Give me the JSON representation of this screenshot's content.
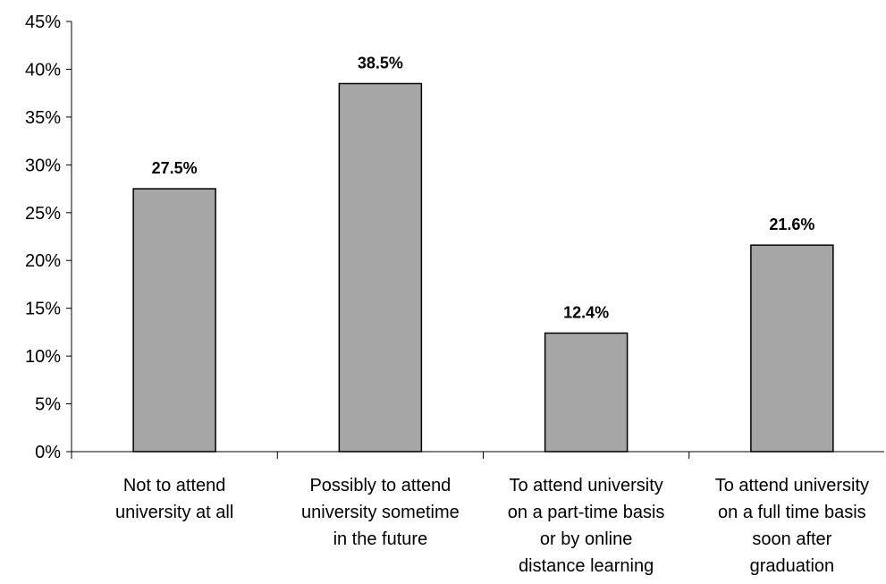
{
  "chart_data": {
    "type": "bar",
    "categories": [
      "Not to attend university at all",
      "Possibly to attend university sometime in the future",
      "To attend university on a part-time basis or by online distance learning",
      "To attend university on a full time basis soon after graduation"
    ],
    "category_label_lines": [
      [
        "Not to attend",
        "university at all"
      ],
      [
        "Possibly to attend",
        "university sometime",
        "in the future"
      ],
      [
        "To attend university",
        "on a part-time basis",
        "or by online",
        "distance learning"
      ],
      [
        "To attend university",
        "on a full time basis",
        "soon after",
        "graduation"
      ]
    ],
    "values": [
      27.5,
      38.5,
      12.4,
      21.6
    ],
    "data_labels": [
      "27.5%",
      "38.5%",
      "12.4%",
      "21.6%"
    ],
    "y_ticks": [
      0,
      5,
      10,
      15,
      20,
      25,
      30,
      35,
      40,
      45
    ],
    "y_tick_labels": [
      "0%",
      "5%",
      "10%",
      "15%",
      "20%",
      "25%",
      "30%",
      "35%",
      "40%",
      "45%"
    ],
    "ylim": [
      0,
      45
    ],
    "title": "",
    "xlabel": "",
    "ylabel": "",
    "grid": false,
    "legend": "none",
    "colors": {
      "bar_fill": "#a6a6a6",
      "bar_stroke": "#000000",
      "axis": "#000000",
      "text": "#000000",
      "background": "#ffffff"
    }
  }
}
